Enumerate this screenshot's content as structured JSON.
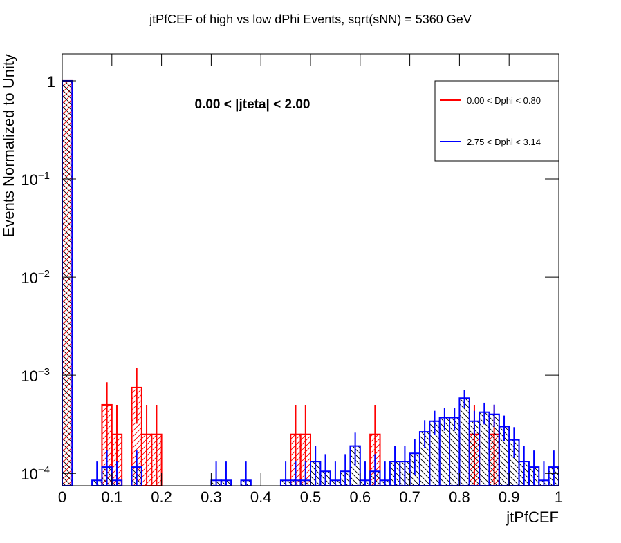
{
  "chart_data": {
    "type": "histogram",
    "title": "jtPfCEF of high vs low dPhi Events, sqrt(sNN) = 5360 GeV",
    "annotation": "0.00 < |jteta| < 2.00",
    "xlabel": "jtPfCEF",
    "ylabel": "Events Normalized to Unity",
    "log_y": true,
    "bins": [
      0,
      0.02,
      0.04,
      0.06,
      0.08,
      0.1,
      0.12,
      0.14,
      0.16,
      0.18,
      0.2,
      0.22,
      0.24,
      0.26,
      0.28,
      0.3,
      0.32,
      0.34,
      0.36,
      0.38,
      0.4,
      0.42,
      0.44,
      0.46,
      0.48,
      0.5,
      0.52,
      0.54,
      0.56,
      0.58,
      0.6,
      0.62,
      0.64,
      0.66,
      0.68,
      0.7,
      0.72,
      0.74,
      0.76,
      0.78,
      0.8,
      0.82,
      0.84,
      0.86,
      0.88,
      0.9,
      0.92,
      0.94,
      0.96,
      0.98,
      1
    ],
    "series": [
      {
        "name": "0.00 < Dphi < 0.80",
        "color": "#ff0000",
        "values": [
          1,
          null,
          null,
          null,
          0.0005,
          0.00025,
          null,
          0.00075,
          0.00025,
          0.00025,
          null,
          null,
          null,
          null,
          null,
          null,
          null,
          null,
          null,
          null,
          null,
          null,
          null,
          0.00025,
          0.00025,
          null,
          null,
          null,
          null,
          null,
          null,
          0.00025,
          null,
          null,
          null,
          null,
          null,
          null,
          null,
          null,
          null,
          0.00025,
          null,
          0.00025,
          null,
          null,
          null,
          null,
          null,
          null
        ],
        "errors": [
          0.005,
          null,
          null,
          null,
          0.00035,
          0.00025,
          null,
          0.00043,
          0.00025,
          0.00025,
          null,
          null,
          null,
          null,
          null,
          null,
          null,
          null,
          null,
          null,
          null,
          null,
          null,
          0.00025,
          0.00025,
          null,
          null,
          null,
          null,
          null,
          null,
          0.00025,
          null,
          null,
          null,
          null,
          null,
          null,
          null,
          null,
          null,
          0.00025,
          null,
          0.00025,
          null,
          null,
          null,
          null,
          null,
          null
        ]
      },
      {
        "name": "2.75 < Dphi < 3.14",
        "color": "#0000ff",
        "values": [
          1,
          null,
          null,
          8.5e-05,
          0.000116,
          8.5e-05,
          null,
          0.000116,
          null,
          null,
          null,
          null,
          null,
          null,
          null,
          8.5e-05,
          8.5e-05,
          null,
          8.5e-05,
          null,
          null,
          null,
          8.5e-05,
          8.5e-05,
          8.5e-05,
          0.000132,
          0.000105,
          8.5e-05,
          0.000105,
          0.00019,
          8.5e-05,
          0.000105,
          8.5e-05,
          0.000132,
          0.000132,
          0.00016,
          0.000265,
          0.00034,
          0.00037,
          0.00037,
          0.000585,
          0.00034,
          0.00042,
          0.0004,
          0.0003,
          0.00022,
          0.000132,
          0.000116,
          8.5e-05,
          0.000116
        ],
        "errors": [
          0.005,
          null,
          null,
          4.7e-05,
          5.5e-05,
          4.7e-05,
          null,
          5.5e-05,
          null,
          null,
          null,
          null,
          null,
          null,
          null,
          4.7e-05,
          4.7e-05,
          null,
          4.7e-05,
          null,
          null,
          null,
          4.7e-05,
          4.7e-05,
          4.7e-05,
          5.9e-05,
          5.2e-05,
          4.7e-05,
          5.2e-05,
          7e-05,
          4.7e-05,
          5.2e-05,
          4.7e-05,
          5.9e-05,
          5.9e-05,
          6.4e-05,
          8.3e-05,
          9.4e-05,
          9.8e-05,
          9.8e-05,
          0.000123,
          9.4e-05,
          0.000105,
          0.000102,
          8.8e-05,
          7.6e-05,
          5.9e-05,
          5.5e-05,
          4.7e-05,
          5.5e-05
        ]
      }
    ],
    "xlim": [
      0,
      1
    ],
    "xticks": [
      0,
      0.1,
      0.2,
      0.3,
      0.4,
      0.5,
      0.6,
      0.7,
      0.8,
      0.9,
      1
    ],
    "ylim": [
      7.5e-05,
      1.88
    ],
    "yticks": [
      {
        "value": 0.0001,
        "label": "10",
        "exponent": "−4"
      },
      {
        "value": 0.001,
        "label": "10",
        "exponent": "−3"
      },
      {
        "value": 0.01,
        "label": "10",
        "exponent": "−2"
      },
      {
        "value": 0.1,
        "label": "10",
        "exponent": "−1"
      },
      1
    ]
  }
}
